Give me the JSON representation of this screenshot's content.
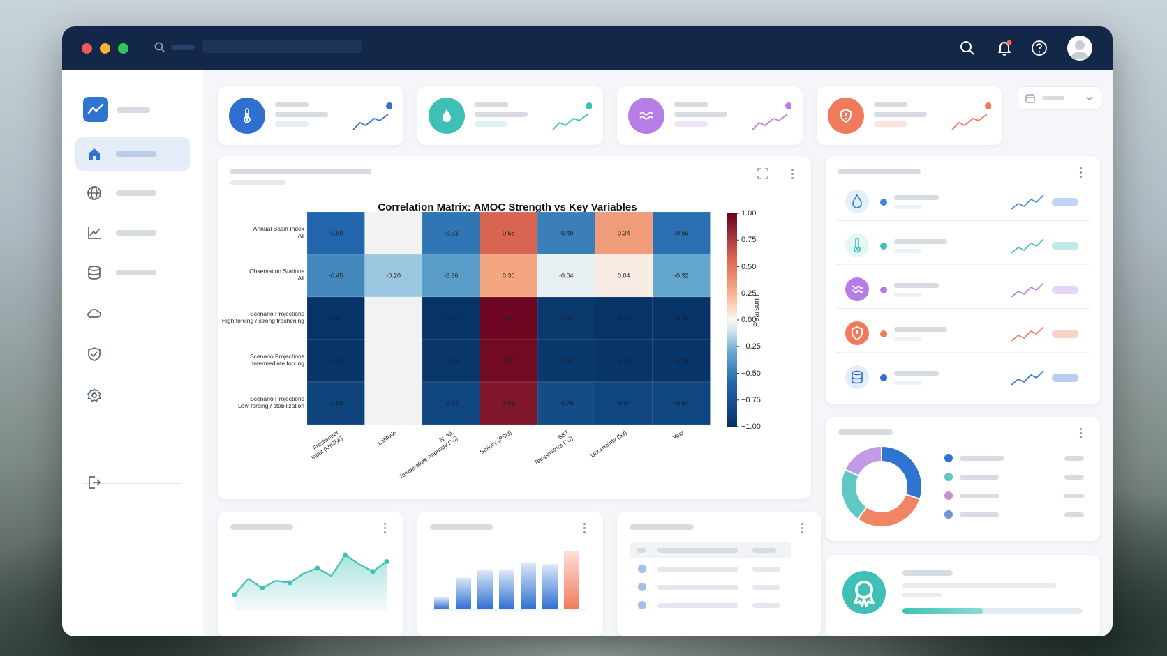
{
  "window": {
    "traffic_lights": [
      "#ee5a55",
      "#f2b637",
      "#35c65a"
    ]
  },
  "header_icons": [
    "search-icon",
    "bell-icon",
    "help-icon",
    "avatar"
  ],
  "sidebar": {
    "items": [
      {
        "icon": "home-icon"
      },
      {
        "icon": "globe-icon"
      },
      {
        "icon": "chart-line-icon"
      },
      {
        "icon": "database-icon"
      },
      {
        "icon": "cloud-icon"
      },
      {
        "icon": "shield-check-icon"
      },
      {
        "icon": "gear-icon"
      },
      {
        "icon": "logout-icon"
      }
    ]
  },
  "stat_cards": [
    {
      "icon": "thermometer-icon",
      "color": "#2f6fd0"
    },
    {
      "icon": "water-drop-icon",
      "color": "#3ec1b4"
    },
    {
      "icon": "waves-icon",
      "color": "#b77de6"
    },
    {
      "icon": "shield-icon",
      "color": "#f17a5c"
    }
  ],
  "chart_data": {
    "type": "heatmap",
    "title": "Correlation Matrix: AMOC Strength vs Key Variables",
    "rows": [
      [
        "Annual Basin Index",
        "All"
      ],
      [
        "Observation Stations",
        "All"
      ],
      [
        "Scenario Projections",
        "High forcing / strong freshening"
      ],
      [
        "Scenario Projections",
        "Intermediate forcing"
      ],
      [
        "Scenario Projections",
        "Low forcing / stabilization"
      ]
    ],
    "columns": [
      [
        "Freshwater",
        "Input (km3/yr)"
      ],
      [
        "Latitude"
      ],
      [
        "N. Atl.",
        "Temperature Anomaly (°C)"
      ],
      [
        "Salinity (PSU)"
      ],
      [
        "SST",
        "Temperature (°C)"
      ],
      [
        "Uncertainty (Sv)"
      ],
      [
        "Year"
      ]
    ],
    "values": [
      [
        -0.6,
        null,
        -0.53,
        0.58,
        -0.49,
        0.34,
        -0.56
      ],
      [
        -0.45,
        -0.2,
        -0.36,
        0.3,
        -0.04,
        0.04,
        -0.32
      ],
      [
        -0.97,
        null,
        -0.97,
        0.97,
        -0.93,
        -0.97,
        -0.96
      ],
      [
        -0.96,
        null,
        -0.95,
        0.96,
        -0.94,
        -0.96,
        -0.96
      ],
      [
        -0.85,
        null,
        -0.84,
        0.91,
        -0.79,
        -0.84,
        -0.84
      ]
    ],
    "cell_labels": [
      [
        "-0.60",
        "",
        "-0.53",
        "0.58",
        "-0.49",
        "0.34",
        "-0.56"
      ],
      [
        "-0.45",
        "-0.20",
        "-0.36",
        "0.30",
        "-0.04",
        "0.04",
        "-0.32"
      ],
      [
        "-0.97",
        "",
        "-0.97",
        "0.97",
        "-0.93",
        "-0.97",
        "-0.96"
      ],
      [
        "-0.96",
        "",
        "-0.95",
        "0.96",
        "-0.94",
        "-0.96",
        "-0.96"
      ],
      [
        "-0.85",
        "",
        "-0.84",
        "0.91",
        "-0.79",
        "-0.84",
        "-0.84"
      ]
    ],
    "colorbar": {
      "label": "Pearson r",
      "range": [
        -1.0,
        1.0
      ],
      "ticks": [
        "1.00",
        "0.75",
        "0.50",
        "0.25",
        "0.00",
        "−0.25",
        "−0.50",
        "−0.75",
        "−1.00"
      ]
    }
  },
  "right_list": [
    {
      "icon": "water-drop-icon",
      "color": "#3f86d8"
    },
    {
      "icon": "thermometer-icon",
      "color": "#3ec1b4"
    },
    {
      "icon": "waves-icon",
      "color": "#b77de6"
    },
    {
      "icon": "shield-icon",
      "color": "#f17a5c"
    },
    {
      "icon": "database-icon",
      "color": "#2f6fd0"
    }
  ],
  "donut": {
    "segments": [
      {
        "value": 30,
        "color": "#2f74d0"
      },
      {
        "value": 30,
        "color": "#f28466"
      },
      {
        "value": 22,
        "color": "#5ec8c4"
      },
      {
        "value": 18,
        "color": "#c29ae6"
      }
    ],
    "legend_colors": [
      "#2f74d0",
      "#5ec8c4",
      "#c390c9",
      "#6f93d6"
    ]
  },
  "mini_line": {
    "values": [
      20,
      44,
      30,
      41,
      38,
      52,
      60,
      48,
      80,
      66,
      55,
      70
    ]
  },
  "mini_bars": {
    "values": [
      16,
      42,
      52,
      52,
      62,
      60,
      78
    ]
  },
  "badge_card": {
    "icon": "award-icon",
    "progress": 0.45
  }
}
